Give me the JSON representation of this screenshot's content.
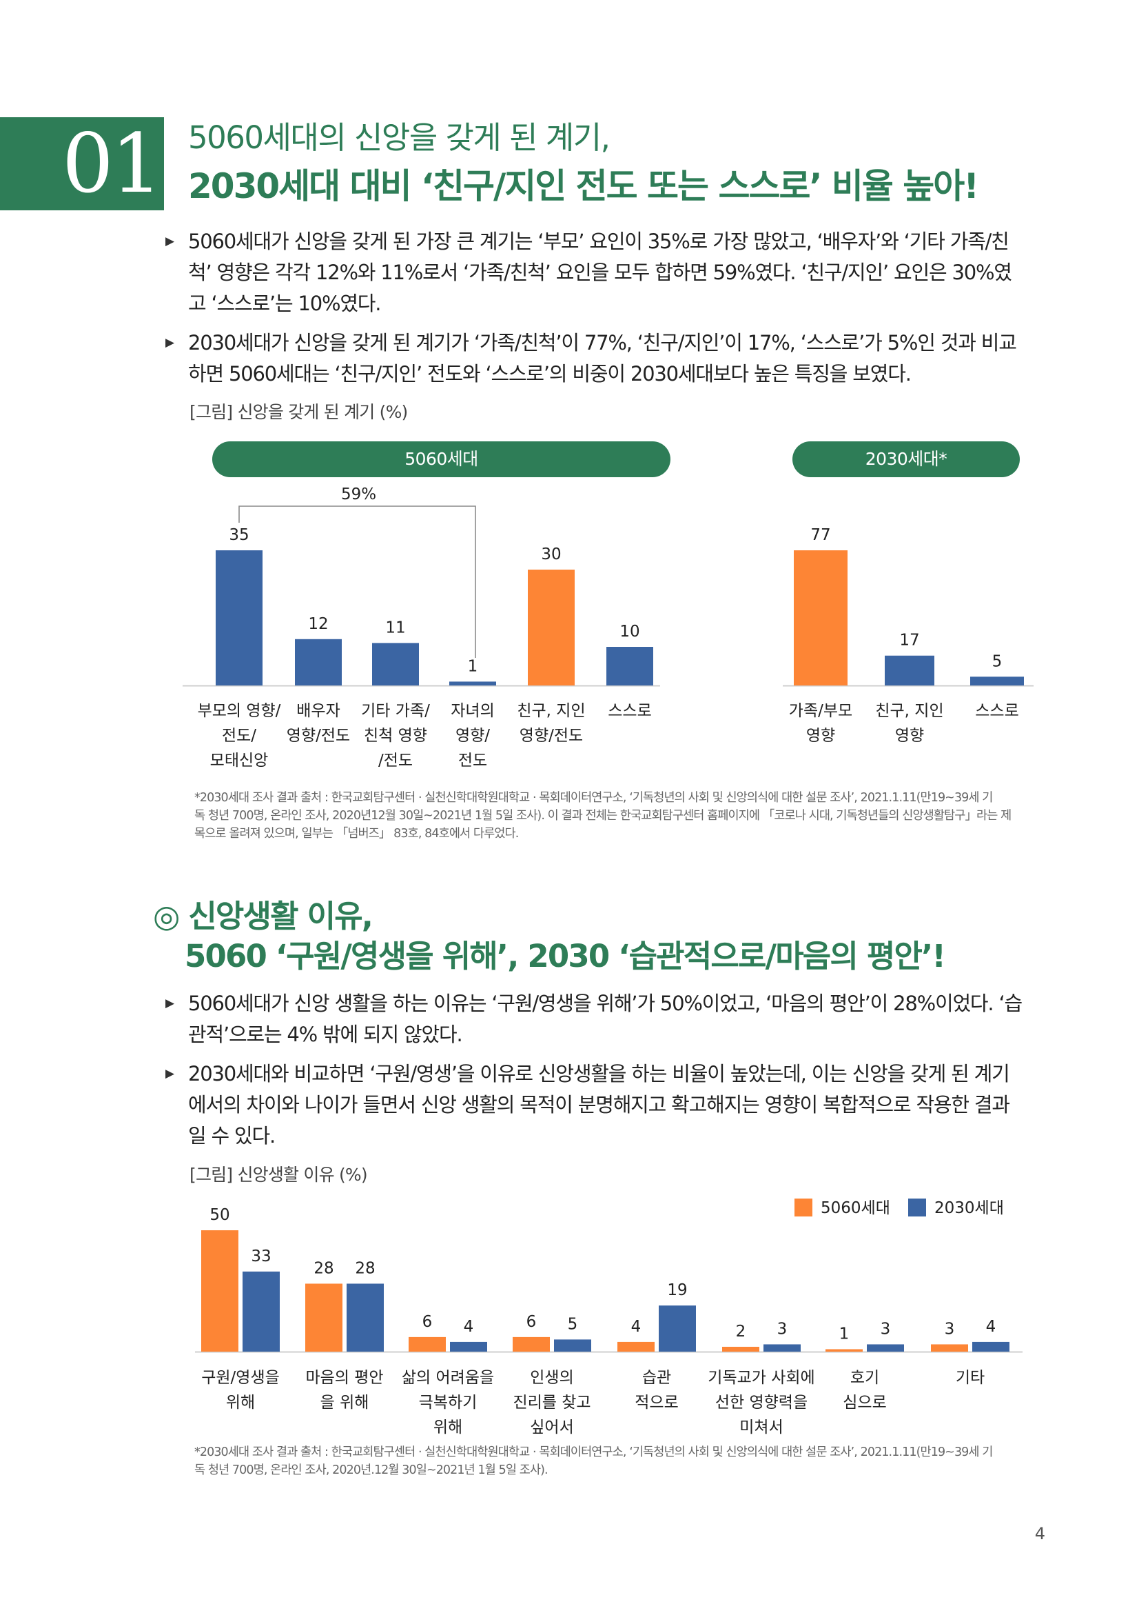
{
  "section1": {
    "number": "01",
    "title_line1": "5060세대의 신앙을 갖게 된 계기,",
    "title_line2": "2030세대 대비 ‘친구/지인 전도 또는 스스로’ 비율 높아!",
    "bullets": [
      [
        "5060세대가 신앙을 갖게 된 가장 큰 계기는 ‘부모’ 요인이 35%로 가장 많았고, ‘배우자’와 ‘기타 가족/친",
        "척’ 영향은 각각 12%와 11%로서 ‘가족/친척’ 요인을 모두 합하면 59%였다. ‘친구/지인’ 요인은 30%였",
        "고 ‘스스로’는 10%였다."
      ],
      [
        "2030세대가 신앙을 갖게 된 계기가 ‘가족/친척’이 77%, ‘친구/지인’이 17%, ‘스스로’가 5%인 것과 비교",
        "하면 5060세대는 ‘친구/지인’ 전도와 ‘스스로’의 비중이 2030세대보다 높은 특징을 보였다."
      ]
    ],
    "figure_caption": "[그림] 신앙을 갖게 된 계기 (%)",
    "footnote": [
      "*2030세대 조사 결과 출처 : 한국교회탐구센터 · 실천신학대학원대학교 · 목회데이터연구소, ‘기독청년의 사회 및 신앙의식에 대한 설문 조사’, 2021.1.11(만19~39세 기",
      "독 청년 700명, 온라인 조사, 2020년12월 30일~2021년 1월 5일 조사). 이 결과 전체는 한국교회탐구센터 홈페이지에 「코로나 시대, 기독청년들의 신앙생활탐구」라는 제",
      "목으로 올려져 있으며, 일부는 「넘버즈」 83호, 84호에서 다루었다."
    ]
  },
  "section2": {
    "title_line1": "◎ 신앙생활 이유,",
    "title_line2": "5060 ‘구원/영생을 위해’, 2030 ‘습관적으로/마음의 평안’!",
    "bullets": [
      [
        "5060세대가 신앙 생활을 하는 이유는 ‘구원/영생을 위해’가 50%이었고, ‘마음의 평안’이 28%이었다. ‘습",
        "관적’으로는 4% 밖에 되지 않았다."
      ],
      [
        "2030세대와 비교하면 ‘구원/영생’을 이유로 신앙생활을 하는 비율이 높았는데, 이는 신앙을 갖게 된 계기",
        "에서의 차이와 나이가 들면서 신앙 생활의 목적이 분명해지고 확고해지는 영향이 복합적으로 작용한 결과",
        "일 수 있다."
      ]
    ],
    "figure_caption": "[그림] 신앙생활 이유 (%)",
    "footnote": [
      "*2030세대 조사 결과 출처 : 한국교회탐구센터 · 실천신학대학원대학교 · 목회데이터연구소, ‘기독청년의 사회 및 신앙의식에 대한 설문 조사’, 2021.1.11(만19~39세 기",
      "독 청년 700명, 온라인 조사, 2020년.12월 30일~2021년 1월 5일 조사)."
    ]
  },
  "page_number": "4",
  "colors": {
    "green": "#2e7d57",
    "orange": "#fd8535",
    "blue": "#3b65a3"
  },
  "chart_data": [
    {
      "type": "bar",
      "panel": "5060세대",
      "categories": [
        [
          "부모의 영향/",
          "전도/",
          "모태신앙"
        ],
        [
          "배우자",
          "영향/전도"
        ],
        [
          "기타 가족/",
          "친척 영향",
          "/전도"
        ],
        [
          "자녀의",
          "영향/",
          "전도"
        ],
        [
          "친구, 지인",
          "영향/전도"
        ],
        [
          "스스로"
        ]
      ],
      "values": [
        35,
        12,
        11,
        1,
        30,
        10
      ],
      "bar_colors": [
        "blue",
        "blue",
        "blue",
        "blue",
        "orange",
        "blue"
      ],
      "annotation": {
        "text": "59%",
        "spans_categories": [
          0,
          3
        ]
      },
      "ylim": [
        0,
        40
      ]
    },
    {
      "type": "bar",
      "panel": "2030세대*",
      "categories": [
        [
          "가족/부모",
          "영향"
        ],
        [
          "친구, 지인",
          "영향"
        ],
        [
          "스스로"
        ]
      ],
      "values": [
        77,
        17,
        5
      ],
      "bar_colors": [
        "orange",
        "blue",
        "blue"
      ],
      "ylim": [
        0,
        88
      ]
    },
    {
      "type": "bar",
      "legend": "top-right",
      "categories": [
        [
          "구원/영생을",
          "위해"
        ],
        [
          "마음의 평안",
          "을 위해"
        ],
        [
          "삶의 어려움을",
          "극복하기",
          "위해"
        ],
        [
          "인생의",
          "진리를 찾고",
          "싶어서"
        ],
        [
          "습관",
          "적으로"
        ],
        [
          "기독교가 사회에",
          "선한 영향력을",
          "미쳐서"
        ],
        [
          "호기",
          "심으로"
        ],
        [
          "기타"
        ]
      ],
      "series": [
        {
          "name": "5060세대",
          "color": "orange",
          "values": [
            50,
            28,
            6,
            6,
            4,
            2,
            1,
            3
          ]
        },
        {
          "name": "2030세대",
          "color": "blue",
          "values": [
            33,
            28,
            4,
            5,
            19,
            3,
            3,
            4
          ]
        }
      ],
      "ylim": [
        0,
        55
      ]
    }
  ]
}
